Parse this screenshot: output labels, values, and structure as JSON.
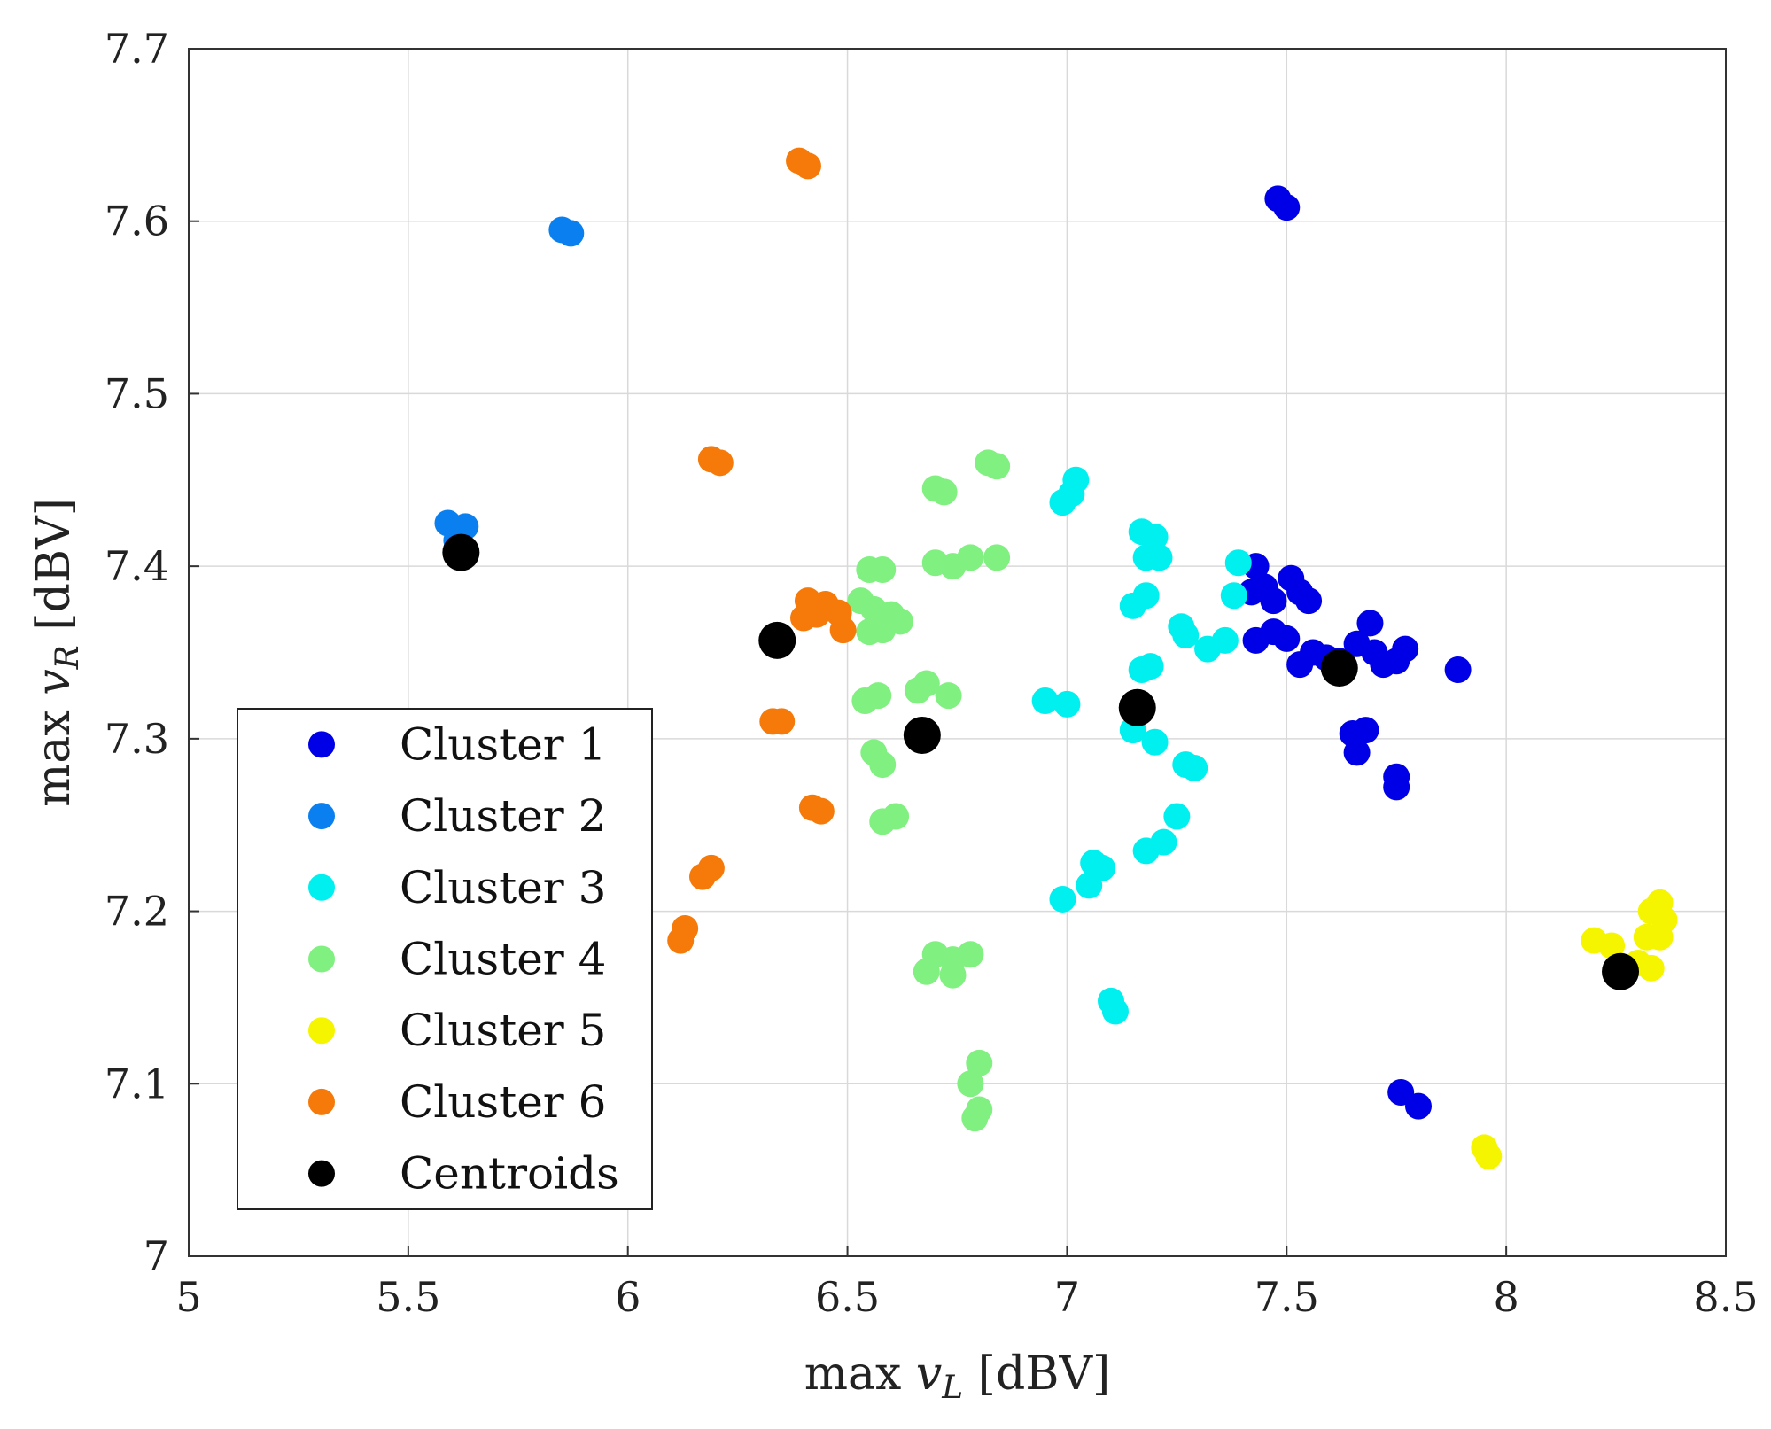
{
  "chart_data": {
    "type": "scatter",
    "xlabel_prefix": "max ",
    "xlabel_var": "v",
    "xlabel_sub": "L",
    "xlabel_unit": " [dBV]",
    "ylabel_prefix": "max ",
    "ylabel_var": "v",
    "ylabel_sub": "R",
    "ylabel_unit": " [dBV]",
    "xlim": [
      5,
      8.5
    ],
    "ylim": [
      7,
      7.7
    ],
    "xticks": [
      5,
      5.5,
      6,
      6.5,
      7,
      7.5,
      8,
      8.5
    ],
    "xtick_labels": [
      "5",
      "5.5",
      "6",
      "6.5",
      "7",
      "7.5",
      "8",
      "8.5"
    ],
    "yticks": [
      7,
      7.1,
      7.2,
      7.3,
      7.4,
      7.5,
      7.6,
      7.7
    ],
    "ytick_labels": [
      "7",
      "7.1",
      "7.2",
      "7.3",
      "7.4",
      "7.5",
      "7.6",
      "7.7"
    ],
    "grid": true,
    "legend_position": "bottom-left",
    "series": [
      {
        "name": "Cluster 1",
        "color": "#0000e6",
        "points": [
          [
            7.48,
            7.613
          ],
          [
            7.5,
            7.608
          ],
          [
            7.43,
            7.4
          ],
          [
            7.42,
            7.385
          ],
          [
            7.45,
            7.388
          ],
          [
            7.47,
            7.38
          ],
          [
            7.51,
            7.393
          ],
          [
            7.53,
            7.385
          ],
          [
            7.55,
            7.38
          ],
          [
            7.5,
            7.358
          ],
          [
            7.47,
            7.362
          ],
          [
            7.43,
            7.357
          ],
          [
            7.53,
            7.343
          ],
          [
            7.56,
            7.35
          ],
          [
            7.59,
            7.347
          ],
          [
            7.62,
            7.345
          ],
          [
            7.66,
            7.355
          ],
          [
            7.69,
            7.367
          ],
          [
            7.7,
            7.35
          ],
          [
            7.72,
            7.343
          ],
          [
            7.75,
            7.345
          ],
          [
            7.77,
            7.352
          ],
          [
            7.89,
            7.34
          ],
          [
            7.65,
            7.303
          ],
          [
            7.68,
            7.305
          ],
          [
            7.66,
            7.292
          ],
          [
            7.75,
            7.278
          ],
          [
            7.75,
            7.272
          ],
          [
            7.76,
            7.095
          ],
          [
            7.8,
            7.087
          ]
        ]
      },
      {
        "name": "Cluster 2",
        "color": "#0a80f0",
        "points": [
          [
            5.85,
            7.595
          ],
          [
            5.87,
            7.593
          ],
          [
            5.59,
            7.425
          ],
          [
            5.63,
            7.423
          ],
          [
            5.61,
            7.415
          ]
        ]
      },
      {
        "name": "Cluster 3",
        "color": "#00f0f0",
        "points": [
          [
            7.02,
            7.45
          ],
          [
            6.99,
            7.437
          ],
          [
            7.01,
            7.442
          ],
          [
            7.17,
            7.42
          ],
          [
            7.2,
            7.417
          ],
          [
            7.18,
            7.405
          ],
          [
            7.21,
            7.405
          ],
          [
            7.39,
            7.402
          ],
          [
            7.38,
            7.383
          ],
          [
            7.18,
            7.383
          ],
          [
            7.15,
            7.377
          ],
          [
            7.26,
            7.365
          ],
          [
            7.27,
            7.36
          ],
          [
            7.36,
            7.357
          ],
          [
            7.32,
            7.352
          ],
          [
            7.17,
            7.34
          ],
          [
            7.19,
            7.342
          ],
          [
            6.95,
            7.322
          ],
          [
            7.0,
            7.32
          ],
          [
            7.15,
            7.305
          ],
          [
            7.2,
            7.298
          ],
          [
            7.27,
            7.285
          ],
          [
            7.29,
            7.283
          ],
          [
            7.25,
            7.255
          ],
          [
            7.22,
            7.24
          ],
          [
            7.18,
            7.235
          ],
          [
            7.06,
            7.228
          ],
          [
            7.08,
            7.225
          ],
          [
            7.05,
            7.215
          ],
          [
            6.99,
            7.207
          ],
          [
            7.1,
            7.148
          ],
          [
            7.11,
            7.142
          ]
        ]
      },
      {
        "name": "Cluster 4",
        "color": "#80f080",
        "points": [
          [
            6.82,
            7.46
          ],
          [
            6.84,
            7.458
          ],
          [
            6.7,
            7.445
          ],
          [
            6.72,
            7.443
          ],
          [
            6.55,
            7.398
          ],
          [
            6.58,
            7.398
          ],
          [
            6.7,
            7.402
          ],
          [
            6.74,
            7.4
          ],
          [
            6.78,
            7.405
          ],
          [
            6.84,
            7.405
          ],
          [
            6.53,
            7.38
          ],
          [
            6.56,
            7.375
          ],
          [
            6.6,
            7.372
          ],
          [
            6.62,
            7.368
          ],
          [
            6.55,
            7.362
          ],
          [
            6.58,
            7.363
          ],
          [
            6.54,
            7.322
          ],
          [
            6.57,
            7.325
          ],
          [
            6.66,
            7.328
          ],
          [
            6.68,
            7.332
          ],
          [
            6.73,
            7.325
          ],
          [
            6.56,
            7.292
          ],
          [
            6.58,
            7.285
          ],
          [
            6.61,
            7.255
          ],
          [
            6.58,
            7.252
          ],
          [
            6.7,
            7.175
          ],
          [
            6.74,
            7.172
          ],
          [
            6.78,
            7.175
          ],
          [
            6.68,
            7.165
          ],
          [
            6.74,
            7.163
          ],
          [
            6.8,
            7.112
          ],
          [
            6.78,
            7.1
          ],
          [
            6.8,
            7.085
          ],
          [
            6.79,
            7.08
          ]
        ]
      },
      {
        "name": "Cluster 5",
        "color": "#f5f500",
        "points": [
          [
            8.35,
            7.205
          ],
          [
            8.33,
            7.2
          ],
          [
            8.36,
            7.195
          ],
          [
            8.32,
            7.185
          ],
          [
            8.35,
            7.185
          ],
          [
            8.2,
            7.183
          ],
          [
            8.24,
            7.18
          ],
          [
            8.3,
            7.17
          ],
          [
            8.33,
            7.167
          ],
          [
            7.95,
            7.063
          ],
          [
            7.96,
            7.058
          ]
        ]
      },
      {
        "name": "Cluster 6",
        "color": "#f57a0a",
        "points": [
          [
            6.39,
            7.635
          ],
          [
            6.41,
            7.632
          ],
          [
            6.19,
            7.462
          ],
          [
            6.21,
            7.46
          ],
          [
            6.41,
            7.38
          ],
          [
            6.45,
            7.378
          ],
          [
            6.48,
            7.373
          ],
          [
            6.4,
            7.37
          ],
          [
            6.43,
            7.372
          ],
          [
            6.49,
            7.363
          ],
          [
            6.33,
            7.31
          ],
          [
            6.35,
            7.31
          ],
          [
            6.42,
            7.26
          ],
          [
            6.44,
            7.258
          ],
          [
            6.17,
            7.22
          ],
          [
            6.19,
            7.225
          ],
          [
            6.13,
            7.19
          ],
          [
            6.12,
            7.183
          ]
        ]
      },
      {
        "name": "Centroids",
        "color": "#000000",
        "centroid": true,
        "points": [
          [
            5.62,
            7.408
          ],
          [
            6.34,
            7.357
          ],
          [
            6.67,
            7.302
          ],
          [
            7.16,
            7.318
          ],
          [
            7.62,
            7.341
          ],
          [
            8.26,
            7.165
          ]
        ]
      }
    ]
  }
}
